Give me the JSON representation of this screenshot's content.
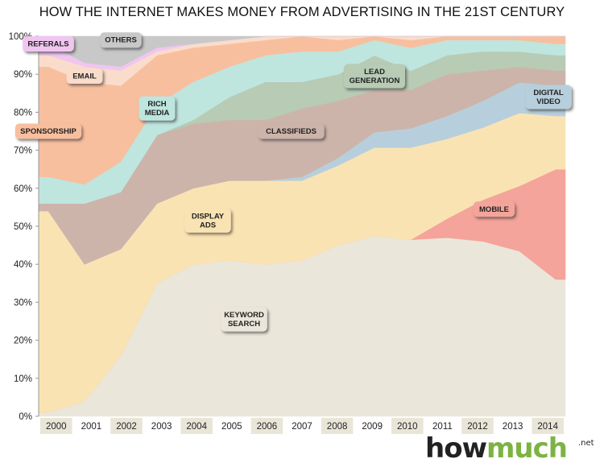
{
  "chart_data": {
    "type": "area",
    "stacking": "percent",
    "title": "HOW THE INTERNET MAKES MONEY FROM ADVERTISING IN THE 21ST CENTURY",
    "xlabel": "",
    "ylabel": "",
    "ylim": [
      0,
      100
    ],
    "y_ticks": [
      "0%",
      "10%",
      "20%",
      "30%",
      "40%",
      "50%",
      "60%",
      "70%",
      "80%",
      "90%",
      "100%"
    ],
    "x": [
      "2000",
      "2001",
      "2002",
      "2003",
      "2004",
      "2005",
      "2006",
      "2007",
      "2008",
      "2009",
      "2010",
      "2011",
      "2012",
      "2013",
      "2014"
    ],
    "series": [
      {
        "name": "KEYWORD SEARCH",
        "color": "#ebe6da",
        "values": [
          1,
          4,
          16,
          35,
          40,
          41,
          40,
          41,
          45,
          47,
          46,
          47,
          46,
          43,
          36
        ]
      },
      {
        "name": "MOBILE",
        "color": "#f4a49a",
        "values": [
          0,
          0,
          0,
          0,
          0,
          0,
          0,
          0,
          0,
          0,
          0,
          5,
          11,
          17,
          29
        ]
      },
      {
        "name": "DISPLAY ADS",
        "color": "#fae3b3",
        "values": [
          53,
          36,
          28,
          21,
          20,
          21,
          22,
          21,
          21,
          23,
          24,
          21,
          19,
          19,
          14
        ]
      },
      {
        "name": "DIGITAL VIDEO",
        "color": "#b7cfdc",
        "values": [
          0,
          0,
          0,
          0,
          0,
          0,
          0,
          1,
          2,
          4,
          5,
          6,
          7,
          8,
          8
        ]
      },
      {
        "name": "CLASSIFIEDS",
        "color": "#cdb4aa",
        "values": [
          2,
          16,
          15,
          18,
          17,
          16,
          16,
          18,
          15,
          11,
          10,
          11,
          8,
          4,
          4
        ]
      },
      {
        "name": "LEAD GENERATION",
        "color": "#b7cbb5",
        "values": [
          0,
          0,
          0,
          0,
          1,
          6,
          10,
          7,
          7,
          9,
          5,
          5,
          5,
          4,
          4
        ]
      },
      {
        "name": "RICH MEDIA",
        "color": "#bfe5df",
        "values": [
          7,
          5,
          8,
          8,
          10,
          8,
          7,
          8,
          6,
          4,
          6,
          4,
          3,
          3,
          3
        ]
      },
      {
        "name": "SPONSORSHIP",
        "color": "#f8bf9f",
        "values": [
          29,
          27,
          20,
          13,
          9,
          6,
          4,
          4,
          3,
          1,
          2,
          1,
          1,
          1,
          2
        ]
      },
      {
        "name": "EMAIL",
        "color": "#fadccb",
        "values": [
          3,
          4,
          4,
          1,
          1,
          1,
          1,
          0,
          1,
          0,
          1,
          0,
          0,
          0,
          0
        ]
      },
      {
        "name": "REFERALS",
        "color": "#f0c6f0",
        "values": [
          3,
          1,
          1,
          1,
          0,
          0,
          0,
          0,
          0,
          0,
          0,
          0,
          0,
          0,
          0
        ]
      },
      {
        "name": "OTHERS",
        "color": "#c8c8c8",
        "values": [
          2,
          7,
          8,
          3,
          2,
          1,
          0,
          0,
          0,
          0,
          0,
          0,
          0,
          0,
          0
        ]
      }
    ],
    "annotations": [
      {
        "series": "REFERALS",
        "lines": [
          "REFERALS"
        ],
        "anchor_year": "2000",
        "anchor_value": 98
      },
      {
        "series": "OTHERS",
        "lines": [
          "OTHERS"
        ],
        "anchor_year": "2002",
        "anchor_value": 99
      },
      {
        "series": "EMAIL",
        "lines": [
          "EMAIL"
        ],
        "anchor_year": "2001",
        "anchor_value": 89.5
      },
      {
        "series": "SPONSORSHIP",
        "lines": [
          "SPONSORSHIP"
        ],
        "anchor_year": "2000",
        "anchor_value": 75
      },
      {
        "series": "RICH MEDIA",
        "lines": [
          "RICH",
          "MEDIA"
        ],
        "anchor_year": "2003",
        "anchor_value": 81
      },
      {
        "series": "LEAD GENERATION",
        "lines": [
          "LEAD",
          "GENERATION"
        ],
        "anchor_year": "2009",
        "anchor_value": 89.5
      },
      {
        "series": "CLASSIFIEDS",
        "lines": [
          "CLASSIFIEDS"
        ],
        "anchor_year": "2006.7",
        "anchor_value": 75
      },
      {
        "series": "DIGITAL VIDEO",
        "lines": [
          "DIGITAL",
          "VIDEO"
        ],
        "anchor_year": "2013.8",
        "anchor_value": 84
      },
      {
        "series": "DISPLAY ADS",
        "lines": [
          "DISPLAY",
          "ADS"
        ],
        "anchor_year": "2004.4",
        "anchor_value": 51.5
      },
      {
        "series": "MOBILE",
        "lines": [
          "MOBILE"
        ],
        "anchor_year": "2012.3",
        "anchor_value": 54.5
      },
      {
        "series": "KEYWORD SEARCH",
        "lines": [
          "KEYWORD",
          "SEARCH"
        ],
        "anchor_year": "2005.4",
        "anchor_value": 25.5
      }
    ],
    "colors": {
      "axis": "#999999",
      "label_shadow": "#333333",
      "brand_how": "#222222",
      "brand_much": "#7cb342"
    }
  },
  "brand": {
    "how": "how",
    "much": "much",
    "net": ".net"
  }
}
